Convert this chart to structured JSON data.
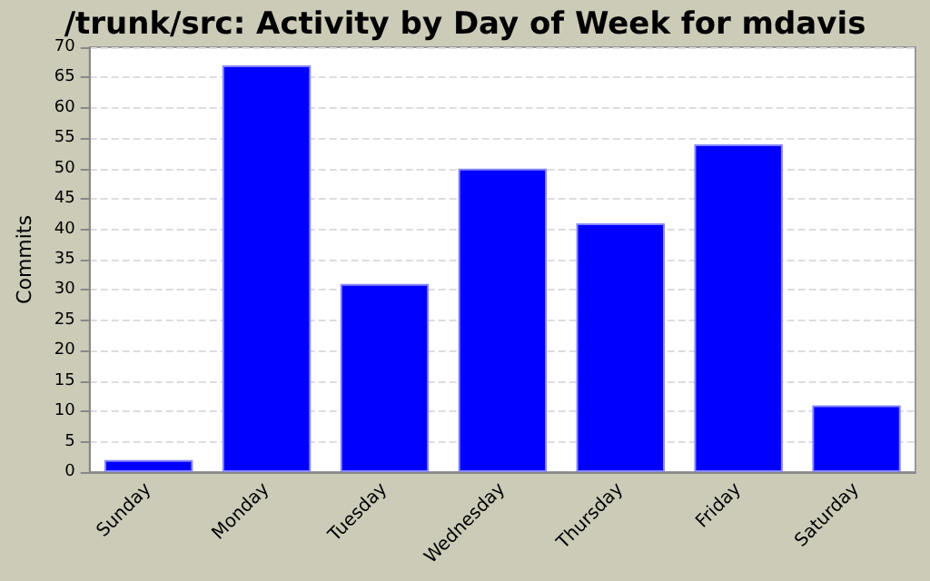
{
  "chart_data": {
    "type": "bar",
    "title": "/trunk/src: Activity by Day of Week for mdavis",
    "ylabel": "Commits",
    "categories": [
      "Sunday",
      "Monday",
      "Tuesday",
      "Wednesday",
      "Thursday",
      "Friday",
      "Saturday"
    ],
    "values": [
      2,
      67,
      31,
      50,
      41,
      54,
      11
    ],
    "color": "#0000ff",
    "ylim": [
      0,
      70
    ],
    "yticks": [
      0,
      5,
      10,
      15,
      20,
      25,
      30,
      35,
      40,
      45,
      50,
      55,
      60,
      65,
      70
    ],
    "grid": "y"
  }
}
